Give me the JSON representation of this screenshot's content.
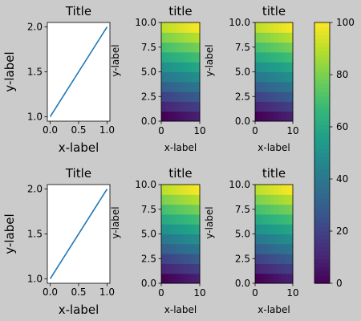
{
  "figure": {
    "background": "#cbcbcb"
  },
  "chart_data": [
    {
      "type": "line",
      "title": "Title",
      "xlabel": "x-label",
      "ylabel": "y-label",
      "x": [
        0,
        1
      ],
      "y": [
        1,
        2
      ],
      "xlim": [
        -0.05,
        1.05
      ],
      "ylim": [
        0.95,
        2.05
      ],
      "xticks": [
        "0.0",
        "0.5",
        "1.0"
      ],
      "yticks": [
        "1.0",
        "1.5",
        "2.0"
      ],
      "line_color": "#1f77b4"
    },
    {
      "type": "heatmap",
      "title": "title",
      "xlabel": "x-label",
      "ylabel": "y-label",
      "xlim": [
        0,
        10
      ],
      "ylim": [
        0,
        10
      ],
      "xticks": [
        "0",
        "10"
      ],
      "yticks": [
        "0.0",
        "2.5",
        "5.0",
        "7.5",
        "10.0"
      ],
      "rows_bottom_to_top": [
        [
          0,
          1,
          2,
          3,
          4,
          5,
          6,
          7,
          8,
          9
        ],
        [
          10,
          11,
          12,
          13,
          14,
          15,
          16,
          17,
          18,
          19
        ],
        [
          20,
          21,
          22,
          23,
          24,
          25,
          26,
          27,
          28,
          29
        ],
        [
          30,
          31,
          32,
          33,
          34,
          35,
          36,
          37,
          38,
          39
        ],
        [
          40,
          41,
          42,
          43,
          44,
          45,
          46,
          47,
          48,
          49
        ],
        [
          50,
          51,
          52,
          53,
          54,
          55,
          56,
          57,
          58,
          59
        ],
        [
          60,
          61,
          62,
          63,
          64,
          65,
          66,
          67,
          68,
          69
        ],
        [
          70,
          71,
          72,
          73,
          74,
          75,
          76,
          77,
          78,
          79
        ],
        [
          80,
          81,
          82,
          83,
          84,
          85,
          86,
          87,
          88,
          89
        ],
        [
          90,
          91,
          92,
          93,
          94,
          95,
          96,
          97,
          98,
          99
        ]
      ]
    },
    {
      "type": "heatmap",
      "title": "title",
      "xlabel": "x-label",
      "ylabel": "y-label",
      "xlim": [
        0,
        10
      ],
      "ylim": [
        0,
        10
      ],
      "xticks": [
        "0",
        "10"
      ],
      "yticks": [
        "0.0",
        "2.5",
        "5.0",
        "7.5",
        "10.0"
      ],
      "rows_bottom_to_top": [
        [
          0,
          1,
          2,
          3,
          4,
          5,
          6,
          7,
          8,
          9
        ],
        [
          10,
          11,
          12,
          13,
          14,
          15,
          16,
          17,
          18,
          19
        ],
        [
          20,
          21,
          22,
          23,
          24,
          25,
          26,
          27,
          28,
          29
        ],
        [
          30,
          31,
          32,
          33,
          34,
          35,
          36,
          37,
          38,
          39
        ],
        [
          40,
          41,
          42,
          43,
          44,
          45,
          46,
          47,
          48,
          49
        ],
        [
          50,
          51,
          52,
          53,
          54,
          55,
          56,
          57,
          58,
          59
        ],
        [
          60,
          61,
          62,
          63,
          64,
          65,
          66,
          67,
          68,
          69
        ],
        [
          70,
          71,
          72,
          73,
          74,
          75,
          76,
          77,
          78,
          79
        ],
        [
          80,
          81,
          82,
          83,
          84,
          85,
          86,
          87,
          88,
          89
        ],
        [
          90,
          91,
          92,
          93,
          94,
          95,
          96,
          97,
          98,
          99
        ]
      ]
    },
    {
      "type": "line",
      "title": "Title",
      "xlabel": "x-label",
      "ylabel": "y-label",
      "x": [
        0,
        1
      ],
      "y": [
        1,
        2
      ],
      "xlim": [
        -0.05,
        1.05
      ],
      "ylim": [
        0.95,
        2.05
      ],
      "xticks": [
        "0.0",
        "0.5",
        "1.0"
      ],
      "yticks": [
        "1.0",
        "1.5",
        "2.0"
      ],
      "line_color": "#1f77b4"
    },
    {
      "type": "heatmap",
      "title": "title",
      "xlabel": "x-label",
      "ylabel": "y-label",
      "xlim": [
        0,
        10
      ],
      "ylim": [
        0,
        10
      ],
      "xticks": [
        "0",
        "10"
      ],
      "yticks": [
        "0.0",
        "2.5",
        "5.0",
        "7.5",
        "10.0"
      ],
      "rows_bottom_to_top": [
        [
          0,
          1,
          2,
          3,
          4,
          5,
          6,
          7,
          8,
          9
        ],
        [
          10,
          11,
          12,
          13,
          14,
          15,
          16,
          17,
          18,
          19
        ],
        [
          20,
          21,
          22,
          23,
          24,
          25,
          26,
          27,
          28,
          29
        ],
        [
          30,
          31,
          32,
          33,
          34,
          35,
          36,
          37,
          38,
          39
        ],
        [
          40,
          41,
          42,
          43,
          44,
          45,
          46,
          47,
          48,
          49
        ],
        [
          50,
          51,
          52,
          53,
          54,
          55,
          56,
          57,
          58,
          59
        ],
        [
          60,
          61,
          62,
          63,
          64,
          65,
          66,
          67,
          68,
          69
        ],
        [
          70,
          71,
          72,
          73,
          74,
          75,
          76,
          77,
          78,
          79
        ],
        [
          80,
          81,
          82,
          83,
          84,
          85,
          86,
          87,
          88,
          89
        ],
        [
          90,
          91,
          92,
          93,
          94,
          95,
          96,
          97,
          98,
          99
        ]
      ]
    },
    {
      "type": "heatmap",
      "title": "title",
      "xlabel": "x-label",
      "ylabel": "y-label",
      "xlim": [
        0,
        10
      ],
      "ylim": [
        0,
        10
      ],
      "xticks": [
        "0",
        "10"
      ],
      "yticks": [
        "0.0",
        "2.5",
        "5.0",
        "7.5",
        "10.0"
      ],
      "rows_bottom_to_top": [
        [
          0,
          1,
          2,
          3,
          4,
          5,
          6,
          7,
          8,
          9
        ],
        [
          10,
          11,
          12,
          13,
          14,
          15,
          16,
          17,
          18,
          19
        ],
        [
          20,
          21,
          22,
          23,
          24,
          25,
          26,
          27,
          28,
          29
        ],
        [
          30,
          31,
          32,
          33,
          34,
          35,
          36,
          37,
          38,
          39
        ],
        [
          40,
          41,
          42,
          43,
          44,
          45,
          46,
          47,
          48,
          49
        ],
        [
          50,
          51,
          52,
          53,
          54,
          55,
          56,
          57,
          58,
          59
        ],
        [
          60,
          61,
          62,
          63,
          64,
          65,
          66,
          67,
          68,
          69
        ],
        [
          70,
          71,
          72,
          73,
          74,
          75,
          76,
          77,
          78,
          79
        ],
        [
          80,
          81,
          82,
          83,
          84,
          85,
          86,
          87,
          88,
          89
        ],
        [
          90,
          91,
          92,
          93,
          94,
          95,
          96,
          97,
          98,
          99
        ]
      ]
    }
  ],
  "colorbar": {
    "colormap": "viridis",
    "range": [
      0,
      100
    ],
    "ticks": [
      "0",
      "20",
      "40",
      "60",
      "80",
      "100"
    ]
  }
}
